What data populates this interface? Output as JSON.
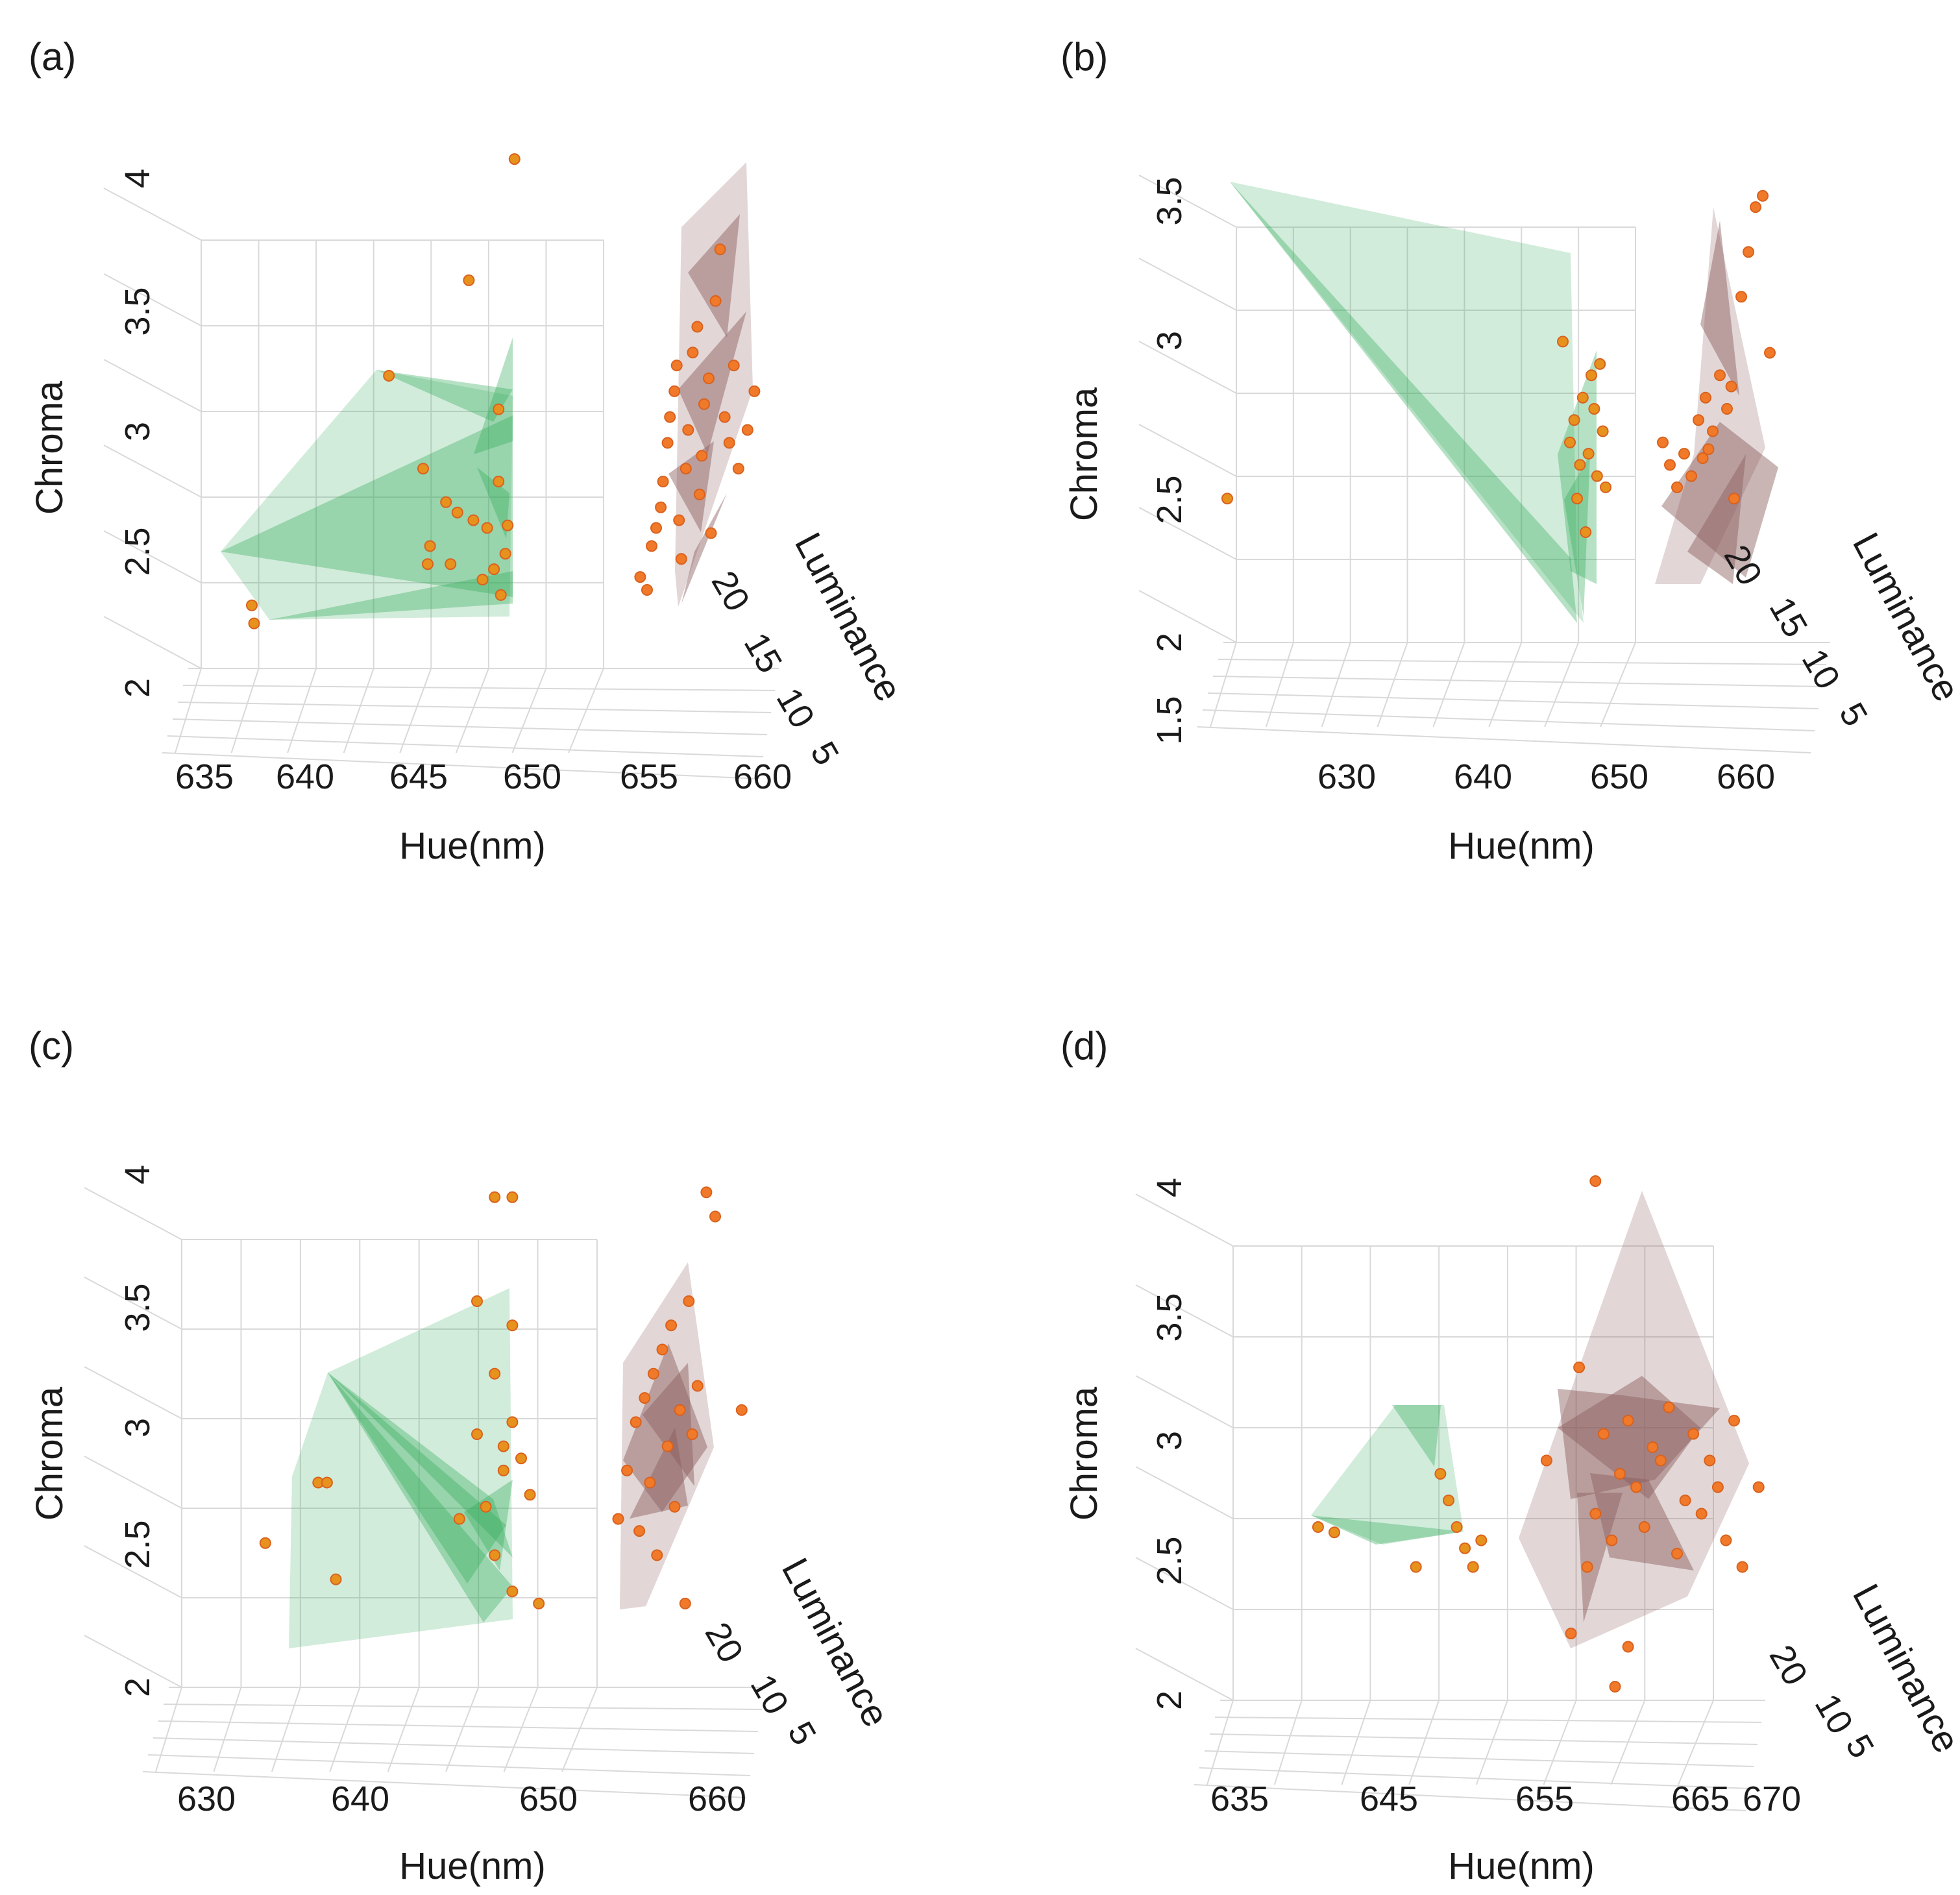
{
  "colors": {
    "green_hull": "#2eaa55",
    "brown_hull": "#8a5a5a",
    "point_orange": "#f07a2a",
    "point_amber": "#e8921e"
  },
  "chart_data": [
    {
      "type": "scatter",
      "panel_label": "(a)",
      "xlabel": "Hue(nm)",
      "ylabel": "Chroma",
      "zlabel": "Luminance",
      "x_ticks": [
        "635",
        "640",
        "645",
        "650",
        "655",
        "660"
      ],
      "y_ticks": [
        "4",
        "3.5",
        "3",
        "2.5",
        "2"
      ],
      "z_ticks": [
        "20",
        "15",
        "10",
        "5"
      ],
      "xlim": [
        635,
        660
      ],
      "ylim": [
        2,
        4
      ],
      "series": [
        {
          "name": "green group",
          "points": [
            [
              637.5,
              2.32
            ],
            [
              637.6,
              2.25
            ],
            [
              643.5,
              3.21
            ],
            [
              645.0,
              2.85
            ],
            [
              645.3,
              2.55
            ],
            [
              645.2,
              2.48
            ],
            [
              646.2,
              2.48
            ],
            [
              646.0,
              2.72
            ],
            [
              646.5,
              2.68
            ],
            [
              647.0,
              3.58
            ],
            [
              647.2,
              2.65
            ],
            [
              647.6,
              2.42
            ],
            [
              647.8,
              2.62
            ],
            [
              648.1,
              2.46
            ],
            [
              648.3,
              2.8
            ],
            [
              648.3,
              3.08
            ],
            [
              648.4,
              2.36
            ],
            [
              648.6,
              2.52
            ],
            [
              649.0,
              4.05
            ],
            [
              648.7,
              2.63
            ]
          ]
        },
        {
          "name": "brown group",
          "points": [
            [
              654.5,
              2.43
            ],
            [
              654.8,
              2.38
            ],
            [
              655.0,
              2.55
            ],
            [
              655.2,
              2.62
            ],
            [
              655.4,
              2.7
            ],
            [
              655.5,
              2.8
            ],
            [
              655.7,
              2.95
            ],
            [
              655.8,
              3.05
            ],
            [
              656.0,
              3.15
            ],
            [
              656.1,
              3.25
            ],
            [
              656.2,
              2.65
            ],
            [
              656.3,
              2.5
            ],
            [
              656.5,
              2.85
            ],
            [
              656.6,
              3.0
            ],
            [
              656.8,
              3.3
            ],
            [
              657.0,
              3.4
            ],
            [
              657.1,
              2.75
            ],
            [
              657.2,
              2.9
            ],
            [
              657.3,
              3.1
            ],
            [
              657.5,
              3.2
            ],
            [
              657.6,
              2.6
            ],
            [
              657.8,
              3.5
            ],
            [
              658.0,
              3.7
            ],
            [
              658.2,
              3.05
            ],
            [
              658.4,
              2.95
            ],
            [
              658.6,
              3.25
            ],
            [
              658.8,
              2.85
            ],
            [
              659.2,
              3.0
            ],
            [
              659.5,
              3.15
            ]
          ]
        }
      ],
      "legend": "none"
    },
    {
      "type": "scatter",
      "panel_label": "(b)",
      "xlabel": "Hue(nm)",
      "ylabel": "Chroma",
      "zlabel": "Luminance",
      "x_ticks": [
        "630",
        "640",
        "650",
        "660"
      ],
      "y_ticks": [
        "3.5",
        "3",
        "2.5",
        "2",
        "1.5"
      ],
      "z_ticks": [
        "20",
        "15",
        "10",
        "5"
      ],
      "xlim": [
        622,
        662
      ],
      "ylim": [
        1.5,
        3.7
      ],
      "series": [
        {
          "name": "green group",
          "points": [
            [
              622.5,
              2.2
            ],
            [
              646.0,
              2.9
            ],
            [
              646.5,
              2.45
            ],
            [
              646.8,
              2.55
            ],
            [
              647.0,
              2.2
            ],
            [
              647.2,
              2.35
            ],
            [
              647.4,
              2.65
            ],
            [
              647.6,
              2.05
            ],
            [
              647.8,
              2.4
            ],
            [
              648.0,
              2.75
            ],
            [
              648.2,
              2.6
            ],
            [
              648.4,
              2.3
            ],
            [
              648.6,
              2.8
            ],
            [
              648.8,
              2.5
            ],
            [
              649.0,
              2.25
            ]
          ]
        },
        {
          "name": "brown group",
          "points": [
            [
              653.0,
              2.45
            ],
            [
              653.5,
              2.35
            ],
            [
              654.0,
              2.25
            ],
            [
              654.5,
              2.4
            ],
            [
              655.0,
              2.3
            ],
            [
              655.5,
              2.55
            ],
            [
              656.0,
              2.65
            ],
            [
              656.5,
              2.5
            ],
            [
              657.0,
              2.75
            ],
            [
              657.5,
              2.6
            ],
            [
              658.0,
              2.2
            ],
            [
              658.5,
              3.1
            ],
            [
              659.0,
              3.3
            ],
            [
              659.5,
              3.5
            ],
            [
              660.0,
              3.55
            ],
            [
              660.5,
              2.85
            ],
            [
              656.2,
              2.42
            ],
            [
              657.8,
              2.7
            ],
            [
              655.8,
              2.38
            ]
          ]
        }
      ],
      "legend": "none"
    },
    {
      "type": "scatter",
      "panel_label": "(c)",
      "xlabel": "Hue(nm)",
      "ylabel": "Chroma",
      "zlabel": "Luminance",
      "x_ticks": [
        "630",
        "640",
        "650",
        "660"
      ],
      "y_ticks": [
        "4",
        "3.5",
        "3",
        "2.5",
        "2"
      ],
      "z_ticks": [
        "20",
        "10",
        "5"
      ],
      "xlim": [
        630,
        662
      ],
      "ylim": [
        1.8,
        4
      ],
      "series": [
        {
          "name": "green group",
          "points": [
            [
              634.0,
              2.45
            ],
            [
              637.0,
              2.7
            ],
            [
              637.5,
              2.7
            ],
            [
              638.0,
              2.3
            ],
            [
              645.0,
              2.55
            ],
            [
              646.0,
              3.45
            ],
            [
              646.0,
              2.9
            ],
            [
              646.5,
              2.6
            ],
            [
              647.0,
              3.15
            ],
            [
              647.0,
              2.4
            ],
            [
              647.5,
              2.75
            ],
            [
              647.5,
              2.85
            ],
            [
              648.0,
              2.95
            ],
            [
              648.0,
              3.35
            ],
            [
              648.0,
              2.25
            ],
            [
              648.5,
              2.8
            ],
            [
              649.0,
              2.65
            ],
            [
              649.5,
              2.2
            ],
            [
              647.0,
              3.88
            ],
            [
              648.0,
              3.88
            ]
          ]
        },
        {
          "name": "brown group",
          "points": [
            [
              654.0,
              2.55
            ],
            [
              654.5,
              2.75
            ],
            [
              655.0,
              2.95
            ],
            [
              655.2,
              2.5
            ],
            [
              655.5,
              3.05
            ],
            [
              655.8,
              2.7
            ],
            [
              656.0,
              3.15
            ],
            [
              656.2,
              2.4
            ],
            [
              656.5,
              3.25
            ],
            [
              656.8,
              2.85
            ],
            [
              657.0,
              3.35
            ],
            [
              657.2,
              2.6
            ],
            [
              657.5,
              3.0
            ],
            [
              657.8,
              2.2
            ],
            [
              658.0,
              3.45
            ],
            [
              658.2,
              2.9
            ],
            [
              658.5,
              3.1
            ],
            [
              659.0,
              3.9
            ],
            [
              659.5,
              3.8
            ],
            [
              661.0,
              3.0
            ]
          ]
        }
      ],
      "legend": "none"
    },
    {
      "type": "scatter",
      "panel_label": "(d)",
      "xlabel": "Hue(nm)",
      "ylabel": "Chroma",
      "zlabel": "Luminance",
      "x_ticks": [
        "635",
        "645",
        "655",
        "665",
        "670"
      ],
      "y_ticks": [
        "4",
        "3.5",
        "3",
        "2.5",
        "2"
      ],
      "z_ticks": [
        "20",
        "10",
        "5"
      ],
      "xlim": [
        635,
        670
      ],
      "ylim": [
        2,
        4
      ],
      "series": [
        {
          "name": "green group",
          "points": [
            [
              641.0,
              2.7
            ],
            [
              642.0,
              2.68
            ],
            [
              647.0,
              2.55
            ],
            [
              648.5,
              2.9
            ],
            [
              649.0,
              2.8
            ],
            [
              649.5,
              2.7
            ],
            [
              650.0,
              2.62
            ],
            [
              650.5,
              2.55
            ],
            [
              651.0,
              2.65
            ]
          ]
        },
        {
          "name": "brown group",
          "points": [
            [
              655.0,
              2.95
            ],
            [
              656.5,
              2.3
            ],
            [
              657.0,
              3.3
            ],
            [
              657.5,
              2.55
            ],
            [
              658.0,
              2.75
            ],
            [
              658.5,
              3.05
            ],
            [
              659.0,
              2.65
            ],
            [
              659.2,
              2.1
            ],
            [
              659.5,
              2.9
            ],
            [
              660.0,
              3.1
            ],
            [
              660.5,
              2.85
            ],
            [
              661.0,
              2.7
            ],
            [
              661.5,
              3.0
            ],
            [
              662.0,
              2.95
            ],
            [
              662.5,
              3.15
            ],
            [
              663.0,
              2.6
            ],
            [
              663.5,
              2.8
            ],
            [
              664.0,
              3.05
            ],
            [
              664.5,
              2.75
            ],
            [
              665.0,
              2.95
            ],
            [
              665.5,
              2.85
            ],
            [
              666.0,
              2.65
            ],
            [
              666.5,
              3.1
            ],
            [
              667.0,
              2.55
            ],
            [
              668.0,
              2.85
            ],
            [
              658.0,
              4.0
            ],
            [
              660.0,
              2.25
            ]
          ]
        }
      ],
      "legend": "none"
    }
  ]
}
